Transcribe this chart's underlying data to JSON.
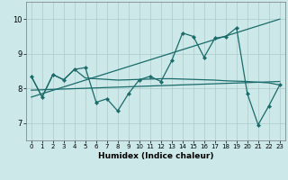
{
  "xlabel": "Humidex (Indice chaleur)",
  "bg_color": "#cce8e8",
  "line_color": "#1a6b6b",
  "grid_color": "#aacccc",
  "xlim": [
    -0.5,
    23.5
  ],
  "ylim": [
    6.5,
    10.5
  ],
  "yticks": [
    7,
    8,
    9,
    10
  ],
  "xticks": [
    0,
    1,
    2,
    3,
    4,
    5,
    6,
    7,
    8,
    9,
    10,
    11,
    12,
    13,
    14,
    15,
    16,
    17,
    18,
    19,
    20,
    21,
    22,
    23
  ],
  "series_zigzag": [
    8.35,
    7.75,
    8.4,
    8.25,
    8.55,
    8.6,
    7.6,
    7.7,
    7.35,
    7.85,
    8.25,
    8.35,
    8.2,
    8.8,
    9.6,
    9.5,
    8.9,
    9.45,
    9.5,
    9.75,
    7.85,
    6.95,
    7.5,
    8.1
  ],
  "series_flat": [
    8.35,
    7.75,
    8.4,
    8.25,
    8.55,
    8.3,
    8.28,
    8.26,
    8.24,
    8.25,
    8.26,
    8.27,
    8.28,
    8.28,
    8.27,
    8.26,
    8.25,
    8.24,
    8.22,
    8.21,
    8.2,
    8.18,
    8.16,
    8.1
  ],
  "trend1_x": [
    0,
    23
  ],
  "trend1_y": [
    7.95,
    8.2
  ],
  "trend2_x": [
    0,
    23
  ],
  "trend2_y": [
    7.75,
    10.0
  ]
}
